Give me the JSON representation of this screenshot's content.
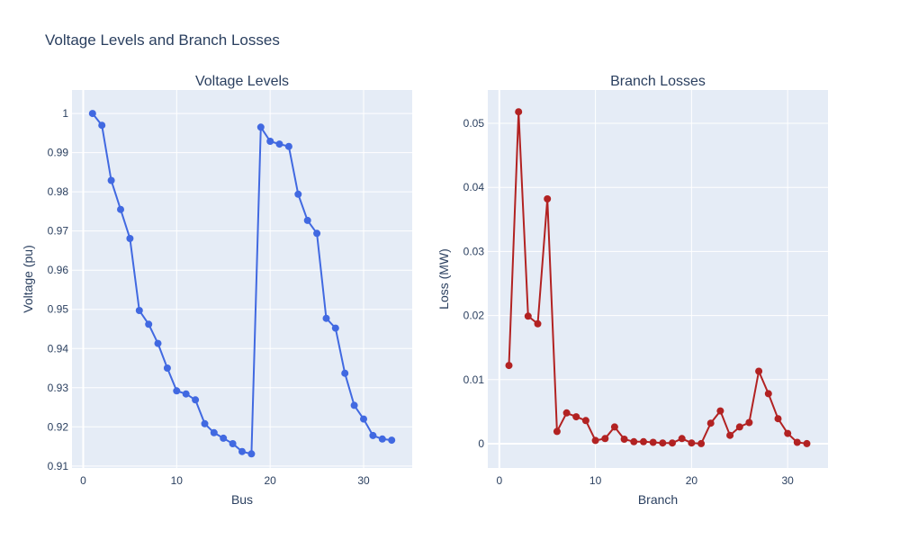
{
  "figure": {
    "title": "Voltage Levels and Branch Losses"
  },
  "chart_data": [
    {
      "type": "line",
      "title": "Voltage Levels",
      "xlabel": "Bus",
      "ylabel": "Voltage (pu)",
      "xlim": [
        -1.2,
        35.2
      ],
      "ylim": [
        0.9095,
        1.006
      ],
      "x_ticks": [
        0,
        10,
        20,
        30
      ],
      "y_ticks": [
        0.91,
        0.92,
        0.93,
        0.94,
        0.95,
        0.96,
        0.97,
        0.98,
        0.99,
        1
      ],
      "y_tick_labels": [
        "0.91",
        "0.92",
        "0.93",
        "0.94",
        "0.95",
        "0.96",
        "0.97",
        "0.98",
        "0.99",
        "1"
      ],
      "grid": true,
      "color": "#4169e1",
      "series": [
        {
          "x": [
            1,
            2,
            3,
            4,
            5,
            6,
            7,
            8,
            9,
            10,
            11,
            12,
            13,
            14,
            15,
            16,
            17,
            18,
            19,
            20,
            21,
            22,
            23,
            24,
            25,
            26,
            27,
            28,
            29,
            30,
            31,
            32,
            33
          ],
          "values": [
            1.0,
            0.997,
            0.9829,
            0.9755,
            0.9681,
            0.9497,
            0.9462,
            0.9413,
            0.935,
            0.9292,
            0.9284,
            0.9269,
            0.9208,
            0.9185,
            0.9171,
            0.9157,
            0.9137,
            0.9131,
            0.9965,
            0.9929,
            0.9922,
            0.9916,
            0.9794,
            0.9727,
            0.9694,
            0.9477,
            0.9452,
            0.9337,
            0.9255,
            0.922,
            0.9178,
            0.9169,
            0.9166
          ]
        }
      ]
    },
    {
      "type": "line",
      "title": "Branch Losses",
      "xlabel": "Branch",
      "ylabel": "Loss (MW)",
      "xlim": [
        -1.2,
        34.2
      ],
      "ylim": [
        -0.0038,
        0.0552
      ],
      "x_ticks": [
        0,
        10,
        20,
        30
      ],
      "y_ticks": [
        0,
        0.01,
        0.02,
        0.03,
        0.04,
        0.05
      ],
      "y_tick_labels": [
        "0",
        "0.01",
        "0.02",
        "0.03",
        "0.04",
        "0.05"
      ],
      "grid": true,
      "color": "#b22222",
      "series": [
        {
          "x": [
            1,
            2,
            3,
            4,
            5,
            6,
            7,
            8,
            9,
            10,
            11,
            12,
            13,
            14,
            15,
            16,
            17,
            18,
            19,
            20,
            21,
            22,
            23,
            24,
            25,
            26,
            27,
            28,
            29,
            30,
            31,
            32
          ],
          "values": [
            0.0122,
            0.0518,
            0.0199,
            0.0187,
            0.0382,
            0.0019,
            0.0048,
            0.0042,
            0.0036,
            0.0005,
            0.0008,
            0.0026,
            0.0007,
            0.0003,
            0.0003,
            0.0002,
            0.0001,
            0.0001,
            0.0008,
            0.0001,
            0.0,
            0.0032,
            0.0051,
            0.0013,
            0.0026,
            0.0033,
            0.0113,
            0.0078,
            0.0039,
            0.0016,
            0.0002,
            0.0
          ]
        }
      ]
    }
  ]
}
